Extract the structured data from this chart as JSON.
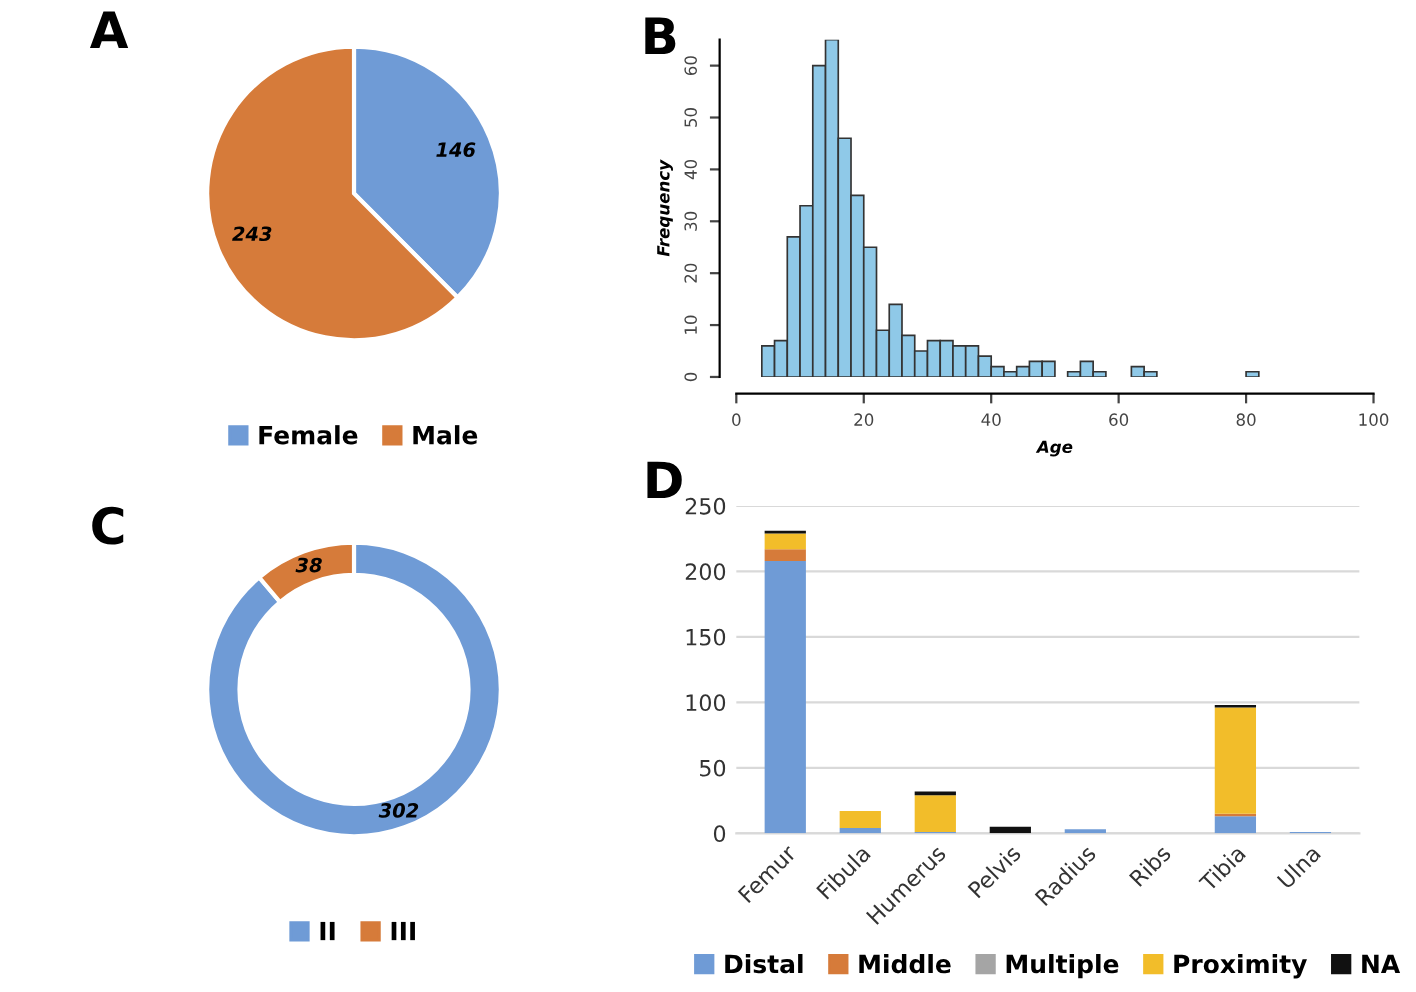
{
  "chart_data": [
    {
      "type": "pie",
      "title": "A",
      "categories": [
        "Female",
        "Male"
      ],
      "values": [
        146,
        243
      ],
      "colors": [
        "#6f9bd6",
        "#d67b3a"
      ],
      "data_labels": true,
      "legend": "bottom"
    },
    {
      "type": "histogram",
      "title": "B",
      "xlabel": "Age",
      "ylabel": "Frequency",
      "color": "#8fc9e8",
      "bins": [
        4,
        6,
        8,
        10,
        12,
        14,
        16,
        18,
        20,
        22,
        24,
        26,
        28,
        30,
        32,
        34,
        36,
        38,
        40,
        42,
        44,
        46,
        48,
        50,
        52,
        54,
        56,
        58,
        60,
        62,
        64,
        66,
        68,
        70,
        72,
        74,
        76,
        78,
        80,
        82
      ],
      "values": [
        6,
        7,
        27,
        33,
        60,
        65,
        46,
        35,
        25,
        9,
        14,
        8,
        5,
        7,
        7,
        6,
        6,
        4,
        2,
        1,
        2,
        3,
        3,
        0,
        1,
        3,
        1,
        0,
        0,
        2,
        1,
        0,
        0,
        0,
        0,
        0,
        0,
        0,
        1
      ],
      "xlim": [
        0,
        100
      ],
      "xticks": [
        0,
        20,
        40,
        60,
        80,
        100
      ],
      "ylim": [
        0,
        65
      ],
      "yticks": [
        0,
        10,
        20,
        30,
        40,
        50,
        60
      ],
      "grid": false
    },
    {
      "type": "donut",
      "title": "C",
      "categories": [
        "II",
        "III"
      ],
      "values": [
        302,
        38
      ],
      "colors": [
        "#6f9bd6",
        "#d67b3a"
      ],
      "data_labels": true,
      "legend": "bottom"
    },
    {
      "type": "bar",
      "title": "D",
      "stacked": true,
      "categories": [
        "Femur",
        "Fibula",
        "Humerus",
        "Pelvis",
        "Radius",
        "Ribs",
        "Tibia",
        "Ulna"
      ],
      "series": [
        {
          "name": "Distal",
          "color": "#6f9bd6",
          "values": [
            208,
            4,
            1,
            0,
            3,
            0,
            13,
            1
          ]
        },
        {
          "name": "Middle",
          "color": "#d67b3a",
          "values": [
            9,
            0,
            0,
            0,
            0,
            0,
            2,
            0
          ]
        },
        {
          "name": "Multiple",
          "color": "#a5a5a5",
          "values": [
            null,
            0,
            0,
            0,
            0,
            null,
            0,
            0
          ]
        },
        {
          "name": "Proximity",
          "color": "#f2bd2a",
          "values": [
            12,
            13,
            28,
            0,
            0,
            0,
            81,
            0
          ]
        },
        {
          "name": "NA",
          "color": "#111111",
          "values": [
            2,
            0,
            3,
            5,
            0,
            0,
            2,
            0
          ]
        }
      ],
      "ylim": [
        0,
        250
      ],
      "yticks": [
        0,
        50,
        100,
        150,
        200,
        250
      ],
      "grid": "y",
      "legend": "bottom"
    }
  ]
}
